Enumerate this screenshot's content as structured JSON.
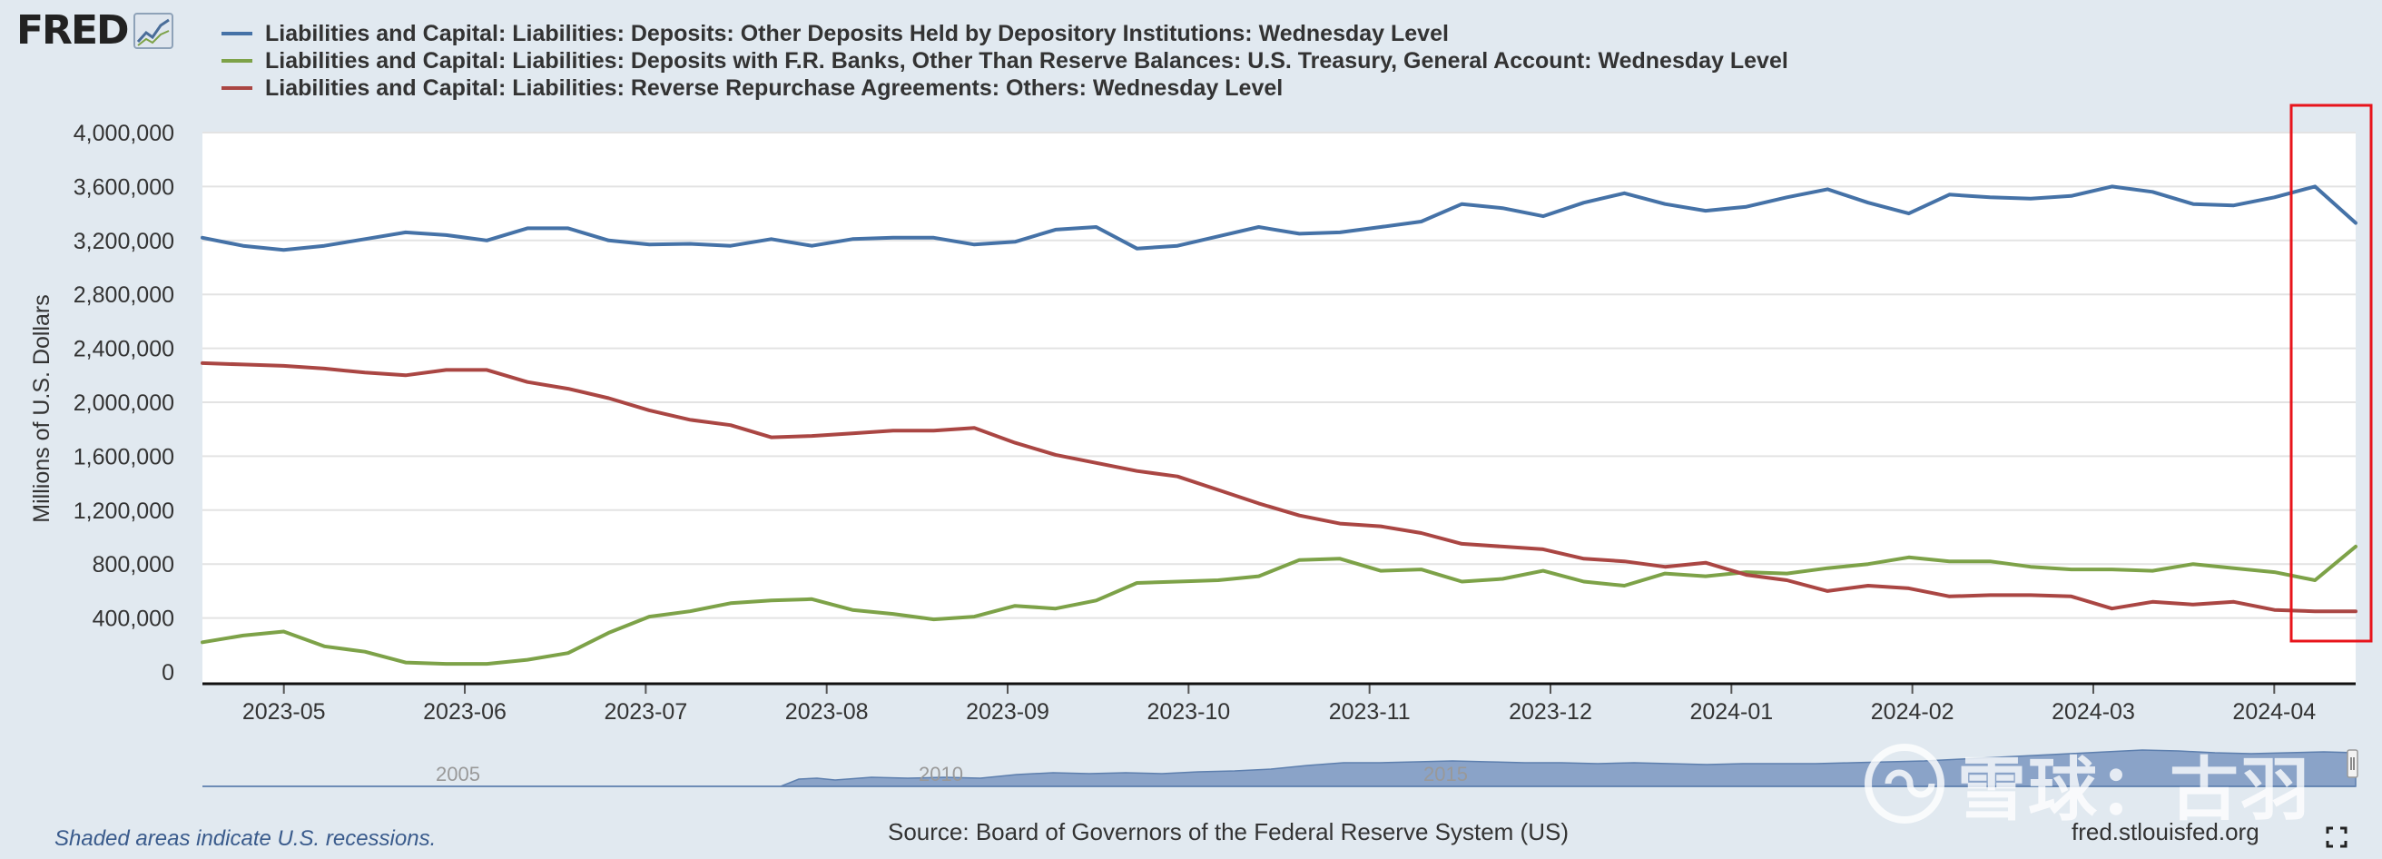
{
  "logo": {
    "text": "FRED"
  },
  "legend": [
    {
      "label": "Liabilities and Capital: Liabilities: Deposits: Other Deposits Held by Depository Institutions: Wednesday Level",
      "color": "#4572a7"
    },
    {
      "label": "Liabilities and Capital: Liabilities: Deposits with F.R. Banks, Other Than Reserve Balances: U.S. Treasury, General Account: Wednesday Level",
      "color": "#7da248"
    },
    {
      "label": "Liabilities and Capital: Liabilities: Reverse Repurchase Agreements: Others: Wednesday Level",
      "color": "#aa4643"
    }
  ],
  "chart_data": {
    "type": "line",
    "ylabel": "Millions of U.S. Dollars",
    "ylim": [
      0,
      4000000
    ],
    "yticks": [
      0,
      400000,
      800000,
      1200000,
      1600000,
      2000000,
      2400000,
      2800000,
      3200000,
      3600000,
      4000000
    ],
    "ytick_labels": [
      "0",
      "400,000",
      "800,000",
      "1,200,000",
      "1,600,000",
      "2,000,000",
      "2,400,000",
      "2,800,000",
      "3,200,000",
      "3,600,000",
      "4,000,000"
    ],
    "x_start_index": -0.45,
    "x_end_index": 11.45,
    "xtick_labels": [
      "2023-05",
      "2023-06",
      "2023-07",
      "2023-08",
      "2023-09",
      "2023-10",
      "2023-11",
      "2023-12",
      "2024-01",
      "2024-02",
      "2024-03",
      "2024-04"
    ],
    "series": [
      {
        "name": "Other Deposits Held by Depository Institutions",
        "color": "#4572a7",
        "values": [
          3220000,
          3160000,
          3130000,
          3160000,
          3210000,
          3260000,
          3240000,
          3200000,
          3290000,
          3290000,
          3200000,
          3170000,
          3175000,
          3160000,
          3210000,
          3160000,
          3210000,
          3220000,
          3220000,
          3170000,
          3190000,
          3280000,
          3300000,
          3140000,
          3160000,
          3230000,
          3300000,
          3250000,
          3260000,
          3300000,
          3340000,
          3470000,
          3440000,
          3380000,
          3480000,
          3550000,
          3470000,
          3420000,
          3450000,
          3520000,
          3580000,
          3480000,
          3400000,
          3540000,
          3520000,
          3510000,
          3530000,
          3600000,
          3560000,
          3470000,
          3460000,
          3520000,
          3600000,
          3330000
        ]
      },
      {
        "name": "U.S. Treasury, General Account",
        "color": "#7da248",
        "values": [
          220000,
          270000,
          300000,
          190000,
          150000,
          70000,
          60000,
          60000,
          90000,
          140000,
          290000,
          410000,
          450000,
          510000,
          530000,
          540000,
          460000,
          430000,
          390000,
          410000,
          490000,
          470000,
          530000,
          660000,
          670000,
          680000,
          710000,
          830000,
          840000,
          750000,
          760000,
          670000,
          690000,
          750000,
          670000,
          640000,
          730000,
          710000,
          740000,
          730000,
          770000,
          800000,
          850000,
          820000,
          820000,
          780000,
          760000,
          760000,
          750000,
          800000,
          770000,
          740000,
          680000,
          930000
        ]
      },
      {
        "name": "Reverse Repurchase Agreements: Others",
        "color": "#aa4643",
        "values": [
          2290000,
          2280000,
          2270000,
          2250000,
          2220000,
          2200000,
          2240000,
          2240000,
          2150000,
          2100000,
          2030000,
          1940000,
          1870000,
          1830000,
          1740000,
          1750000,
          1770000,
          1790000,
          1790000,
          1810000,
          1700000,
          1610000,
          1550000,
          1490000,
          1450000,
          1350000,
          1250000,
          1160000,
          1100000,
          1080000,
          1030000,
          950000,
          930000,
          910000,
          840000,
          820000,
          780000,
          810000,
          720000,
          680000,
          600000,
          640000,
          620000,
          560000,
          570000,
          570000,
          560000,
          470000,
          520000,
          500000,
          520000,
          460000,
          450000,
          450000
        ]
      }
    ]
  },
  "navigator": {
    "labels": [
      "2005",
      "2010",
      "2015"
    ]
  },
  "footer": {
    "note": "Shaded areas indicate U.S. recessions.",
    "source": "Source: Board of Governors of the Federal Reserve System (US)",
    "url": "fred.stlouisfed.org"
  },
  "watermark": {
    "text": "雪球：古羽"
  }
}
